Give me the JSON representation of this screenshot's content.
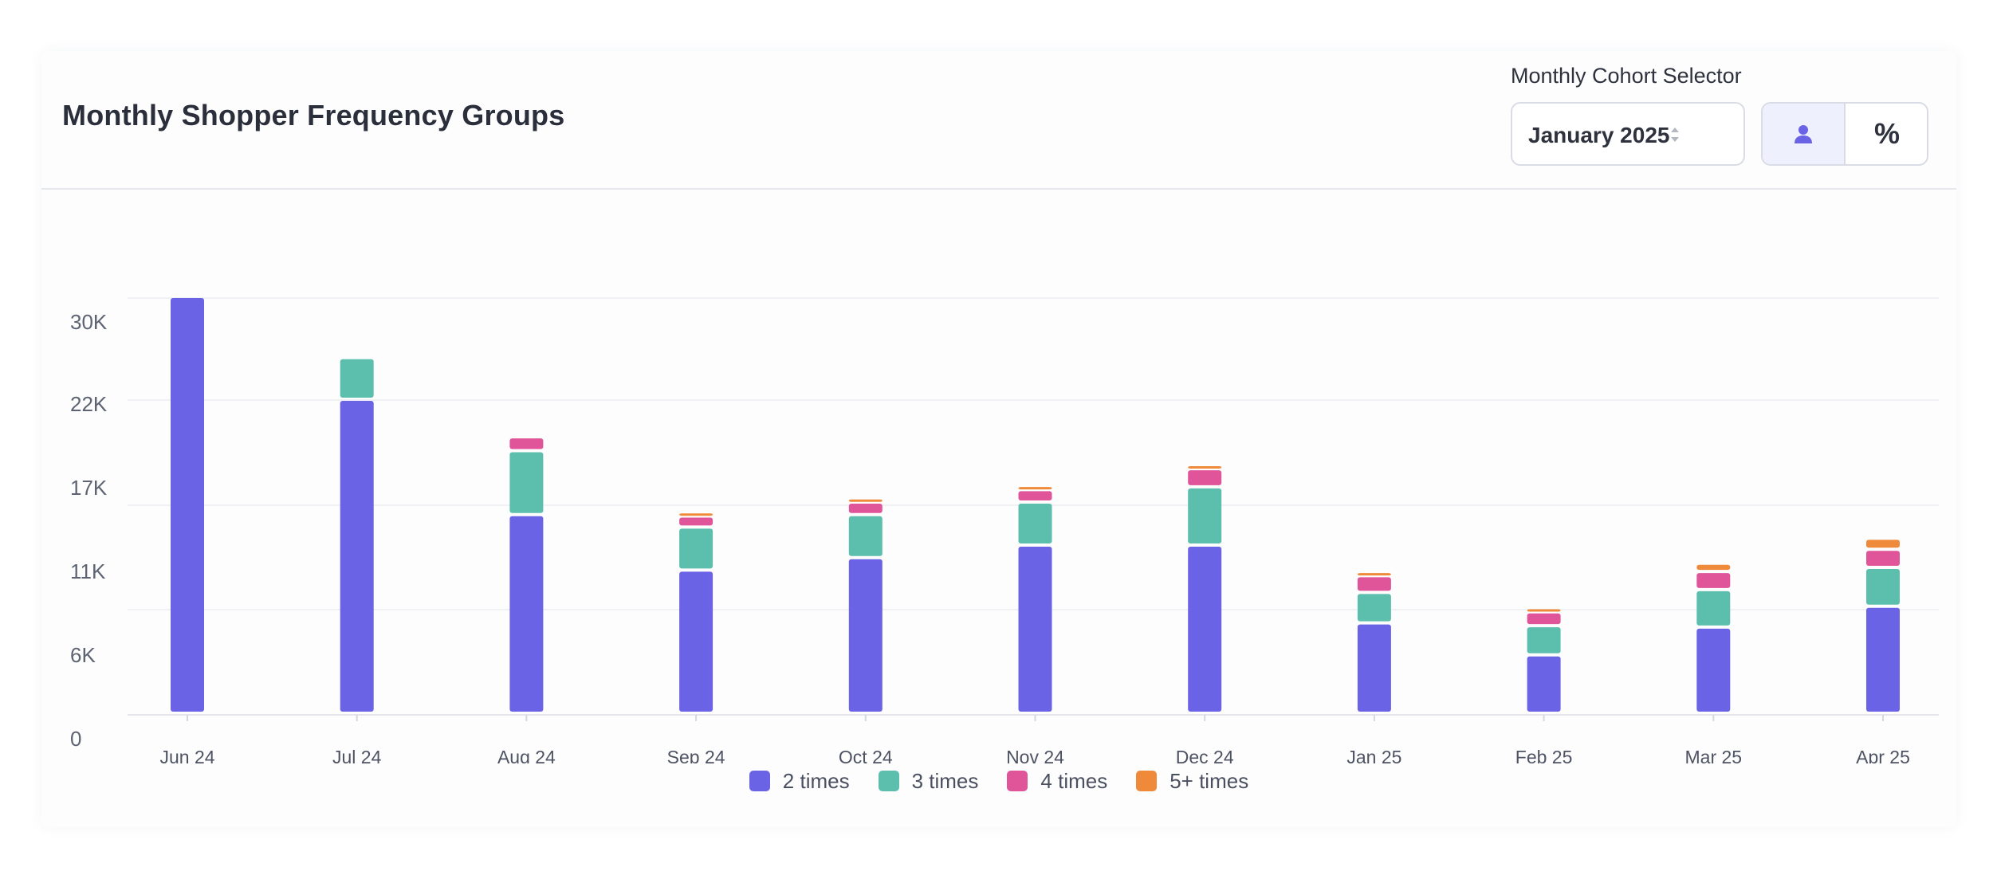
{
  "header": {
    "title": "Monthly Shopper Frequency Groups",
    "selector_label": "Monthly Cohort Selector",
    "selected_cohort": "January 2025",
    "toggle_percent_label": "%"
  },
  "icons": {
    "select_arrows": "sort-arrows-icon",
    "person": "person-icon"
  },
  "colors": {
    "two_times": "#6B63E6",
    "three_times": "#5CBFAE",
    "four_times": "#E0559A",
    "five_plus_times": "#EE8A3A"
  },
  "chart_data": {
    "type": "bar",
    "stacked": true,
    "title": "Monthly Shopper Frequency Groups",
    "xlabel": "",
    "ylabel": "",
    "ylim": [
      0,
      30000
    ],
    "y_ticks": [
      "0",
      "6K",
      "11K",
      "17K",
      "22K",
      "30K"
    ],
    "categories": [
      "Jun 24",
      "Jul 24",
      "Aug 24",
      "Sep 24",
      "Oct 24",
      "Nov 24",
      "Dec 24",
      "Jan 25",
      "Feb 25",
      "Mar 25",
      "Apr 25"
    ],
    "series": [
      {
        "name": "2 times",
        "color": "#6B63E6",
        "values": [
          30000,
          22600,
          14300,
          10300,
          11200,
          12100,
          12100,
          6500,
          4200,
          6200,
          7700
        ]
      },
      {
        "name": "3 times",
        "color": "#5CBFAE",
        "values": [
          0,
          3000,
          4600,
          3100,
          3100,
          3100,
          4200,
          2200,
          2100,
          2700,
          2800
        ]
      },
      {
        "name": "4 times",
        "color": "#E0559A",
        "values": [
          0,
          0,
          1000,
          800,
          900,
          900,
          1300,
          1200,
          1000,
          1300,
          1300
        ]
      },
      {
        "name": "5+ times",
        "color": "#EE8A3A",
        "values": [
          0,
          0,
          0,
          300,
          300,
          300,
          300,
          300,
          300,
          600,
          800
        ]
      }
    ],
    "legend_position": "bottom"
  }
}
